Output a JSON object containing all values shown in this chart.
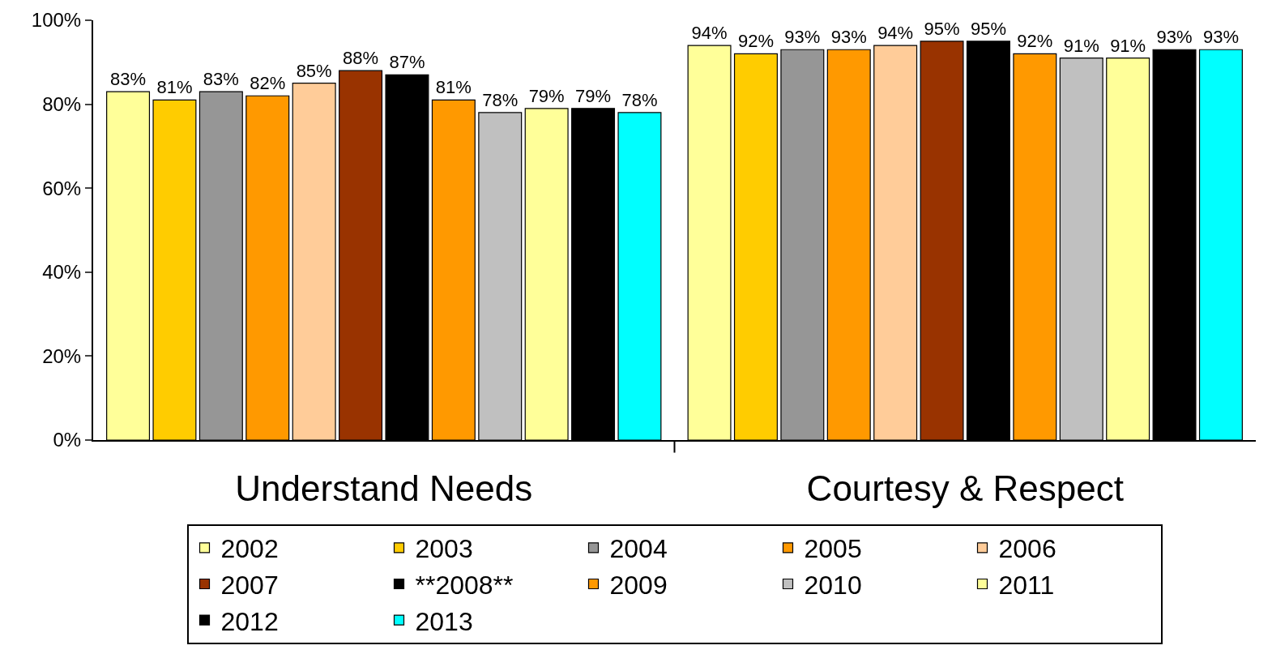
{
  "chart_data": {
    "type": "bar",
    "categories": [
      "Understand Needs",
      "Courtesy & Respect"
    ],
    "ylim": [
      0,
      100
    ],
    "yticks": [
      {
        "value": 0,
        "label": "0%"
      },
      {
        "value": 20,
        "label": "20%"
      },
      {
        "value": 40,
        "label": "40%"
      },
      {
        "value": 60,
        "label": "60%"
      },
      {
        "value": 80,
        "label": "80%"
      },
      {
        "value": 100,
        "label": "100%"
      }
    ],
    "grid": false,
    "legend": "bottom",
    "series": [
      {
        "name": "2002",
        "color": "#ffff99",
        "values": [
          83,
          94
        ],
        "value_labels": [
          "83%",
          "94%"
        ]
      },
      {
        "name": "2003",
        "color": "#ffcc00",
        "values": [
          81,
          92
        ],
        "value_labels": [
          "81%",
          "92%"
        ]
      },
      {
        "name": "2004",
        "color": "#969696",
        "values": [
          83,
          93
        ],
        "value_labels": [
          "83%",
          "93%"
        ]
      },
      {
        "name": "2005",
        "color": "#ff9900",
        "values": [
          82,
          93
        ],
        "value_labels": [
          "82%",
          "93%"
        ]
      },
      {
        "name": "2006",
        "color": "#ffcc99",
        "values": [
          85,
          94
        ],
        "value_labels": [
          "85%",
          "94%"
        ]
      },
      {
        "name": "2007",
        "color": "#993300",
        "values": [
          88,
          95
        ],
        "value_labels": [
          "88%",
          "95%"
        ]
      },
      {
        "name": "**2008**",
        "color": "#000000",
        "values": [
          87,
          95
        ],
        "value_labels": [
          "87%",
          "95%"
        ]
      },
      {
        "name": "2009",
        "color": "#ff9900",
        "values": [
          81,
          92
        ],
        "value_labels": [
          "81%",
          "92%"
        ]
      },
      {
        "name": "2010",
        "color": "#c0c0c0",
        "values": [
          78,
          91
        ],
        "value_labels": [
          "78%",
          "91%"
        ]
      },
      {
        "name": "2011",
        "color": "#ffff99",
        "values": [
          79,
          91
        ],
        "value_labels": [
          "79%",
          "91%"
        ]
      },
      {
        "name": "2012",
        "color": "#000000",
        "values": [
          79,
          93
        ],
        "value_labels": [
          "79%",
          "93%"
        ]
      },
      {
        "name": "2013",
        "color": "#00ffff",
        "values": [
          78,
          93
        ],
        "value_labels": [
          "78%",
          "93%"
        ]
      }
    ]
  }
}
